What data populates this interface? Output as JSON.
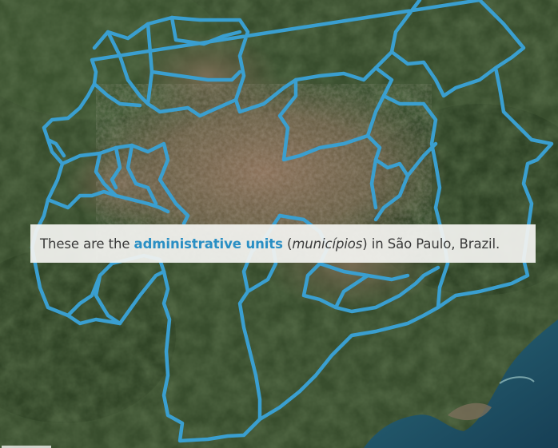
{
  "caption": {
    "prefix": "These are the ",
    "highlight": "administrative units",
    "middle_open": " (",
    "italic": "municípios",
    "middle_close": ") in ",
    "suffix": "São Paulo, Brazil."
  },
  "colors": {
    "boundary": "#3a9fd0",
    "highlight": "#2a8fc4",
    "forest": "#2f4a22",
    "urban": "#8a7058",
    "ocean": "#1f4f66"
  }
}
